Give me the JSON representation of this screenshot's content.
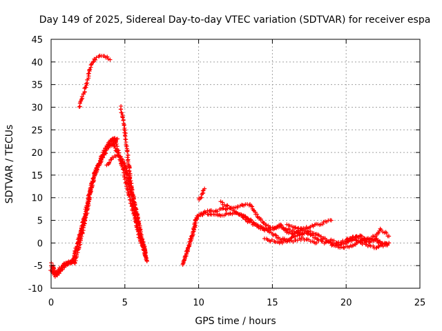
{
  "chart_data": {
    "type": "scatter",
    "title": "Day 149 of 2025, Sidereal Day-to-day VTEC variation (SDTVAR) for receiver espa",
    "xlabel": "GPS time / hours",
    "ylabel": "SDTVAR / TECUs",
    "xlim": [
      0,
      25
    ],
    "ylim": [
      -10,
      45
    ],
    "xticks": [
      0,
      5,
      10,
      15,
      20,
      25
    ],
    "yticks": [
      -10,
      -5,
      0,
      5,
      10,
      15,
      20,
      25,
      30,
      35,
      40,
      45
    ],
    "grid": true,
    "marker": "+",
    "series": [
      {
        "name": "SDTVAR",
        "color": "#ff0000",
        "tracks": [
          {
            "x": [
              0.0,
              0.3,
              0.6,
              1.0,
              1.4
            ],
            "y": [
              -6,
              -7.5,
              -5.5,
              -4.5,
              -4.0
            ]
          },
          {
            "x": [
              0.0,
              0.2,
              0.5,
              0.8,
              1.2,
              1.6
            ],
            "y": [
              -4.5,
              -6.5,
              -6.5,
              -5,
              -4,
              -4.5
            ]
          },
          {
            "x": [
              0.1,
              0.4,
              0.7,
              1.0,
              1.5
            ],
            "y": [
              -5,
              -7,
              -6,
              -4.8,
              -4.2
            ]
          },
          {
            "x": [
              1.4,
              1.8,
              2.2,
              2.6,
              2.9,
              3.2,
              3.5,
              3.8,
              4.0,
              4.2,
              4.4
            ],
            "y": [
              -4.5,
              0,
              5,
              11,
              15,
              17,
              19,
              21,
              22,
              22.5,
              22.5
            ]
          },
          {
            "x": [
              1.5,
              1.9,
              2.3,
              2.7,
              3.0,
              3.3,
              3.6,
              3.9,
              4.2,
              4.5
            ],
            "y": [
              -4,
              1,
              6,
              12,
              16,
              18,
              20.5,
              22,
              23,
              23
            ]
          },
          {
            "x": [
              1.6,
              2.0,
              2.4,
              2.8,
              3.1,
              3.4,
              3.7,
              4.0,
              4.3
            ],
            "y": [
              -4.5,
              0.5,
              6.5,
              13,
              16,
              18.5,
              20,
              21.5,
              22
            ]
          },
          {
            "x": [
              1.9,
              2.2,
              2.5,
              2.7,
              2.9,
              3.2,
              3.5,
              3.8,
              4.0
            ],
            "y": [
              30,
              33,
              36.5,
              39.5,
              40.5,
              41,
              41.5,
              41,
              40.5
            ]
          },
          {
            "x": [
              4.0,
              4.3,
              4.5,
              4.8,
              5.1,
              5.4,
              5.7,
              6.0,
              6.2,
              6.4
            ],
            "y": [
              22.5,
              23,
              21,
              18,
              15,
              11,
              6,
              2,
              0,
              -2
            ]
          },
          {
            "x": [
              4.2,
              4.5,
              4.8,
              5.1,
              5.4,
              5.7,
              6.0,
              6.3,
              6.5
            ],
            "y": [
              22,
              20,
              17,
              13,
              9,
              5,
              1,
              -2,
              -4
            ]
          },
          {
            "x": [
              3.8,
              4.2,
              4.6,
              5.0,
              5.3,
              5.6,
              5.9,
              6.2,
              6.4
            ],
            "y": [
              17,
              19,
              19.5,
              17.5,
              14,
              10,
              5,
              0,
              -3
            ]
          },
          {
            "x": [
              4.7,
              4.9,
              5.1,
              5.3,
              5.5,
              5.7,
              5.9,
              6.1,
              6.3,
              6.5
            ],
            "y": [
              30,
              27.5,
              22,
              16,
              11,
              8,
              5,
              2,
              -1,
              -4
            ]
          },
          {
            "x": [
              8.9,
              9.1,
              9.3,
              9.5,
              9.7,
              9.9
            ],
            "y": [
              -5,
              -3,
              -1,
              1,
              3,
              6
            ]
          },
          {
            "x": [
              9.0,
              9.2,
              9.4,
              9.6,
              9.8,
              10.0
            ],
            "y": [
              -4,
              -2,
              0,
              2,
              5,
              6
            ]
          },
          {
            "x": [
              10.0,
              10.2,
              10.4
            ],
            "y": [
              9.5,
              10.5,
              12
            ]
          },
          {
            "x": [
              10.0,
              10.5,
              11.0,
              11.5,
              12.0,
              12.5,
              13.0,
              13.3
            ],
            "y": [
              6,
              6.5,
              6.5,
              6,
              6.5,
              6.5,
              6,
              5.5
            ]
          },
          {
            "x": [
              10.1,
              10.6,
              11.1,
              11.6,
              12.1,
              12.6,
              13.1,
              13.5,
              14.0,
              14.5,
              15.0,
              15.5,
              16.0,
              16.5,
              17.0
            ],
            "y": [
              6.5,
              7,
              7,
              7.5,
              7.5,
              8,
              8.5,
              8.5,
              6,
              4,
              3.5,
              3.5,
              3,
              2.5,
              2
            ]
          },
          {
            "x": [
              11.5,
              12.0,
              12.5,
              13.0,
              13.5,
              14.0,
              14.5,
              15.0,
              15.5,
              16.0,
              16.5,
              17.0,
              17.5,
              18.0
            ],
            "y": [
              9,
              8,
              7,
              6,
              5,
              4,
              3,
              2,
              1,
              0.5,
              0.5,
              1,
              0.5,
              0
            ]
          },
          {
            "x": [
              13.0,
              13.5,
              14.0,
              14.5,
              15.0,
              15.5,
              16.0,
              16.5,
              17.0,
              17.5,
              18.0,
              18.5,
              19.0
            ],
            "y": [
              5.5,
              4.5,
              3.5,
              3,
              3,
              4,
              2.5,
              2,
              3,
              3.5,
              4,
              4.5,
              5
            ]
          },
          {
            "x": [
              14.5,
              15.0,
              15.5,
              16.0,
              16.5,
              17.0,
              17.5,
              18.0,
              18.5,
              19.0,
              19.5
            ],
            "y": [
              1,
              0.5,
              0,
              0.5,
              1.5,
              2,
              2.5,
              2,
              1,
              0,
              -0.5
            ]
          },
          {
            "x": [
              16.0,
              16.5,
              17.0,
              17.5,
              18.0,
              18.5,
              19.0,
              19.5,
              20.0,
              20.5,
              21.0,
              21.5,
              22.0,
              22.5,
              22.8
            ],
            "y": [
              4,
              3.5,
              3,
              2,
              1,
              0,
              0.5,
              0,
              0.5,
              1,
              0,
              -0.5,
              -1,
              0,
              -0.5
            ]
          },
          {
            "x": [
              19.0,
              19.5,
              20.0,
              20.5,
              21.0,
              21.5,
              22.0,
              22.3,
              22.6,
              22.9
            ],
            "y": [
              -0.5,
              -0.5,
              0,
              1,
              1.5,
              1,
              1.5,
              3,
              2.5,
              1.5
            ]
          },
          {
            "x": [
              19.5,
              20.0,
              20.5,
              21.0,
              21.5,
              22.0,
              22.5,
              22.9
            ],
            "y": [
              -1,
              -1,
              -0.5,
              0.5,
              1,
              1,
              -0.5,
              0
            ]
          },
          {
            "x": [
              20.0,
              20.5,
              21.0,
              21.5,
              22.0,
              22.5,
              22.9
            ],
            "y": [
              1,
              1.5,
              1,
              0,
              0.5,
              0,
              0
            ]
          }
        ]
      }
    ]
  }
}
